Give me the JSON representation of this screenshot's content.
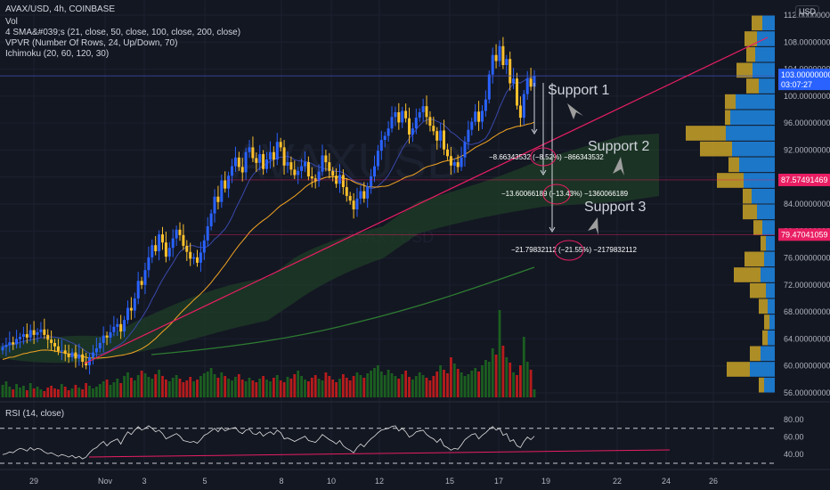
{
  "header": {
    "symbol_line": "AVAX/USD, 4h, COINBASE",
    "indicators": [
      "Vol",
      "4 SMA&#039;s (21, close, 50, close, 100, close, 200, close)",
      "VPVR (Number Of Rows, 24, Up/Down, 70)",
      "Ichimoku (20, 60, 120, 30)"
    ],
    "watermark": "AVAXUSD",
    "watermark_sub": "AVAX / USD"
  },
  "rsi_label": "RSI (14, close)",
  "currency": "USD",
  "colors": {
    "bg": "#131722",
    "up": "#2962ff",
    "down": "#fbc02d",
    "vol_up": "#1b5e20",
    "vol_down": "#b71c1c",
    "trend": "#e91e63",
    "cloud": "#1f3d27",
    "vp_up": "#1e88e5",
    "vp_down": "#c9a227",
    "ma_orange": "#f5a623",
    "ma_green": "#2e7d32",
    "ma_blue": "#3949ab"
  },
  "annotations": {
    "support1": "Support 1",
    "support2": "Support 2",
    "support3": "Support 3",
    "measure1": "−8.66343532 (−8.52%) −866343532",
    "measure2": "−13.60066189 (−13.43%) −1360066189",
    "measure3": "−21.79832112 (−21.55%) −2179832112"
  },
  "price_tags": {
    "current": "103.00000000",
    "countdown": "03:07:27",
    "level1": "87.57491469",
    "level2": "79.47041059"
  },
  "chart_data": {
    "type": "candlestick",
    "y_axis_ticks": [
      "112.00000000",
      "108.00000000",
      "104.00000000",
      "100.00000000",
      "96.00000000",
      "92.00000000",
      "88.00000000",
      "84.00000000",
      "80.00000000",
      "76.00000000",
      "72.00000000",
      "68.00000000",
      "64.00000000",
      "60.00000000",
      "56.00000000"
    ],
    "x_axis_ticks": [
      "29",
      "Nov",
      "3",
      "5",
      "8",
      "10",
      "12",
      "15",
      "17",
      "19",
      "22",
      "24",
      "26"
    ],
    "rsi_ticks": [
      "80.00",
      "60.00",
      "40.00"
    ],
    "price_range": [
      55,
      113
    ],
    "close_path": [
      62.8,
      63.1,
      63.5,
      63.2,
      64.0,
      64.3,
      64.7,
      64.2,
      65.3,
      64.6,
      65.0,
      65.4,
      64.6,
      63.9,
      63.4,
      62.9,
      62.2,
      62.3,
      61.8,
      61.3,
      62.0,
      61.1,
      61.7,
      60.6,
      60.1,
      61.3,
      62.0,
      62.6,
      63.4,
      64.5,
      64.2,
      65.0,
      65.8,
      66.2,
      65.1,
      66.8,
      68.6,
      68.2,
      70.0,
      72.6,
      72.0,
      74.2,
      76.1,
      77.9,
      77.0,
      79.5,
      78.3,
      76.2,
      77.5,
      78.9,
      80.2,
      79.4,
      77.8,
      76.9,
      75.9,
      76.1,
      75.3,
      76.8,
      78.6,
      80.7,
      82.6,
      85.1,
      84.3,
      87.5,
      86.3,
      88.2,
      89.6,
      90.9,
      89.5,
      88.7,
      91.7,
      92.4,
      90.8,
      90.1,
      91.4,
      89.2,
      90.6,
      91.7,
      90.6,
      93.2,
      92.4,
      89.7,
      90.2,
      89.1,
      88.3,
      88.9,
      89.6,
      90.2,
      88.1,
      87.8,
      87.4,
      88.8,
      91.2,
      90.2,
      88.9,
      88.2,
      87.0,
      88.3,
      86.5,
      85.2,
      84.5,
      83.2,
      84.8,
      85.9,
      84.8,
      86.6,
      88.1,
      89.6,
      91.9,
      93.5,
      94.1,
      95.2,
      96.9,
      97.6,
      96.1,
      97.8,
      96.7,
      94.3,
      95.2,
      96.8,
      97.6,
      98.5,
      96.9,
      95.6,
      94.8,
      93.4,
      94.9,
      92.1,
      91.1,
      89.7,
      90.2,
      89.5,
      90.9,
      93.2,
      95.0,
      96.2,
      97.7,
      96.2,
      97.8,
      99.5,
      103.2,
      106.1,
      105.2,
      107.4,
      104.6,
      105.5,
      101.9,
      102.6,
      98.6,
      96.8,
      100.3,
      102.6,
      101.4,
      103.0
    ],
    "volumes": [
      14,
      18,
      12,
      9,
      15,
      11,
      13,
      8,
      16,
      10,
      12,
      9,
      7,
      11,
      13,
      10,
      9,
      15,
      12,
      8,
      10,
      14,
      11,
      9,
      16,
      13,
      10,
      12,
      15,
      18,
      20,
      14,
      17,
      21,
      16,
      24,
      28,
      22,
      19,
      25,
      30,
      27,
      23,
      21,
      26,
      31,
      24,
      20,
      18,
      22,
      25,
      21,
      17,
      19,
      23,
      18,
      20,
      24,
      27,
      29,
      33,
      26,
      22,
      28,
      24,
      21,
      19,
      23,
      26,
      20,
      18,
      22,
      19,
      17,
      21,
      24,
      20,
      18,
      22,
      25,
      19,
      17,
      23,
      21,
      26,
      30,
      24,
      20,
      18,
      22,
      25,
      21,
      19,
      28,
      24,
      20,
      17,
      21,
      26,
      22,
      19,
      24,
      28,
      25,
      22,
      27,
      30,
      33,
      36,
      29,
      25,
      31,
      27,
      24,
      21,
      26,
      30,
      23,
      20,
      24,
      28,
      25,
      22,
      19,
      24,
      29,
      36,
      31,
      27,
      45,
      38,
      32,
      28,
      24,
      26,
      30,
      33,
      29,
      36,
      42,
      40,
      55,
      48,
      98,
      58,
      45,
      39,
      28,
      25,
      36,
      68,
      40,
      31,
      9
    ],
    "rsi": [
      40,
      41,
      43,
      42,
      45,
      47,
      46,
      44,
      48,
      45,
      47,
      46,
      43,
      41,
      42,
      40,
      38,
      40,
      39,
      37,
      39,
      36,
      38,
      35,
      37,
      42,
      46,
      48,
      52,
      55,
      50,
      54,
      56,
      58,
      52,
      60,
      66,
      63,
      68,
      72,
      68,
      70,
      73,
      70,
      66,
      68,
      64,
      58,
      60,
      62,
      64,
      61,
      56,
      55,
      54,
      55,
      53,
      57,
      62,
      64,
      67,
      70,
      66,
      71,
      67,
      69,
      70,
      71,
      66,
      64,
      68,
      69,
      64,
      63,
      66,
      61,
      64,
      66,
      63,
      68,
      65,
      58,
      59,
      57,
      55,
      57,
      59,
      61,
      56,
      55,
      54,
      58,
      63,
      60,
      57,
      55,
      52,
      56,
      50,
      47,
      45,
      42,
      48,
      52,
      49,
      54,
      58,
      61,
      65,
      68,
      69,
      70,
      72,
      73,
      67,
      70,
      66,
      60,
      62,
      66,
      67,
      68,
      63,
      60,
      58,
      54,
      58,
      50,
      48,
      45,
      47,
      46,
      51,
      57,
      60,
      63,
      64,
      58,
      62,
      65,
      69,
      72,
      68,
      70,
      62,
      64,
      55,
      57,
      50,
      48,
      55,
      60,
      57,
      61
    ],
    "volume_profile": [
      {
        "up": 14,
        "down": 12
      },
      {
        "up": 20,
        "down": 14
      },
      {
        "up": 22,
        "down": 10
      },
      {
        "up": 25,
        "down": 18
      },
      {
        "up": 18,
        "down": 14
      },
      {
        "up": 44,
        "down": 12
      },
      {
        "up": 50,
        "down": 6
      },
      {
        "up": 55,
        "down": 45
      },
      {
        "up": 48,
        "down": 36
      },
      {
        "up": 40,
        "down": 12
      },
      {
        "up": 35,
        "down": 30
      },
      {
        "up": 26,
        "down": 10
      },
      {
        "up": 20,
        "down": 16
      },
      {
        "up": 14,
        "down": 10
      },
      {
        "up": 10,
        "down": 6
      },
      {
        "up": 12,
        "down": 22
      },
      {
        "up": 16,
        "down": 30
      },
      {
        "up": 10,
        "down": 18
      },
      {
        "up": 8,
        "down": 10
      },
      {
        "up": 6,
        "down": 6
      },
      {
        "up": 8,
        "down": 6
      },
      {
        "up": 16,
        "down": 12
      },
      {
        "up": 28,
        "down": 26
      },
      {
        "up": 12,
        "down": 6
      }
    ]
  }
}
